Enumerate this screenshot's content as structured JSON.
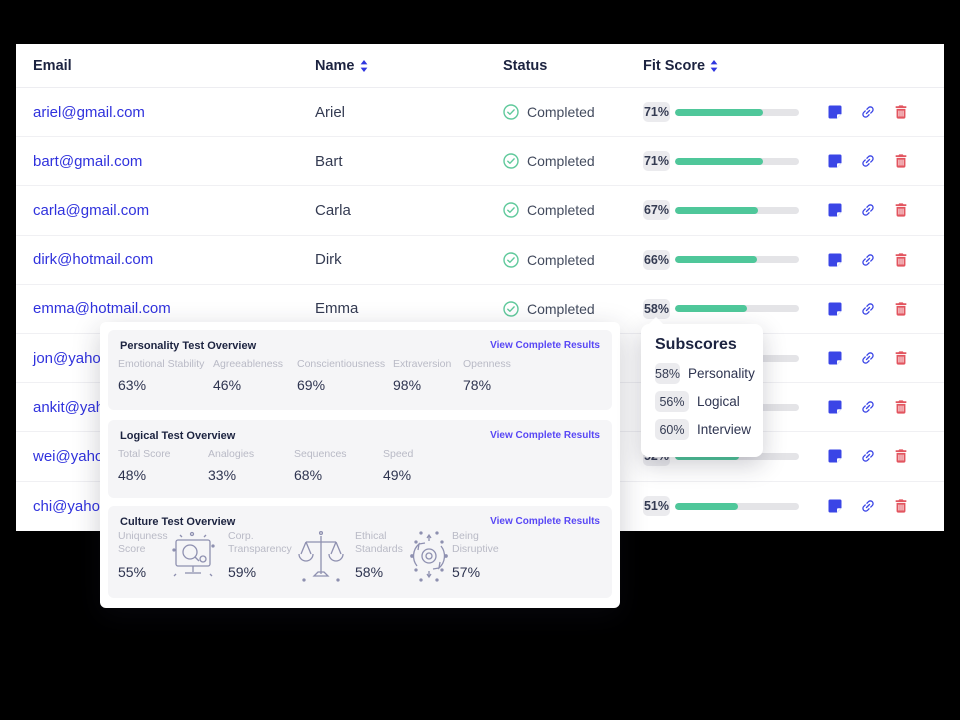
{
  "colors": {
    "page_background": "#000000",
    "accent_indigo": "#3a45e6",
    "link_blue": "#3032dd",
    "success_green": "#5fc99b",
    "progress_green": "#4fc79a",
    "danger_red": "#e2555f",
    "purple_link": "#5847f5"
  },
  "table": {
    "columns": [
      {
        "label": "Email",
        "sortable": false
      },
      {
        "label": "Name",
        "sortable": true
      },
      {
        "label": "Status",
        "sortable": false
      },
      {
        "label": "Fit Score",
        "sortable": true
      }
    ],
    "rows": [
      {
        "email": "ariel@gmail.com",
        "name": "Ariel",
        "status": "Completed",
        "fit": 71
      },
      {
        "email": "bart@gmail.com",
        "name": "Bart",
        "status": "Completed",
        "fit": 71
      },
      {
        "email": "carla@gmail.com",
        "name": "Carla",
        "status": "Completed",
        "fit": 67
      },
      {
        "email": "dirk@hotmail.com",
        "name": "Dirk",
        "status": "Completed",
        "fit": 66
      },
      {
        "email": "emma@hotmail.com",
        "name": "Emma",
        "status": "Completed",
        "fit": 58
      },
      {
        "email": "jon@yahoo.com",
        "name": "",
        "status": null,
        "fit": null
      },
      {
        "email": "ankit@yahoo.com",
        "name": "",
        "status": null,
        "fit": null
      },
      {
        "email": "wei@yahoo.com",
        "name": "",
        "status": null,
        "fit": 52
      },
      {
        "email": "chi@yahoo.com",
        "name": "",
        "status": null,
        "fit": 51
      }
    ],
    "row_actions": [
      {
        "name": "note",
        "icon": "note-icon"
      },
      {
        "name": "copy-link",
        "icon": "link-icon"
      },
      {
        "name": "delete",
        "icon": "trash-icon"
      }
    ]
  },
  "overview_popup": {
    "sections": [
      {
        "title": "Personality Test Overview",
        "link": "View Complete Results",
        "metrics": [
          {
            "label": "Emotional Stability",
            "value": "63%"
          },
          {
            "label": "Agreeableness",
            "value": "46%"
          },
          {
            "label": "Conscientiousness",
            "value": "69%"
          },
          {
            "label": "Extraversion",
            "value": "98%"
          },
          {
            "label": "Openness",
            "value": "78%"
          }
        ]
      },
      {
        "title": "Logical Test Overview",
        "link": "View Complete Results",
        "metrics": [
          {
            "label": "Total Score",
            "value": "48%"
          },
          {
            "label": "Analogies",
            "value": "33%"
          },
          {
            "label": "Sequences",
            "value": "68%"
          },
          {
            "label": "Speed",
            "value": "49%"
          }
        ]
      },
      {
        "title": "Culture Test Overview",
        "link": "View Complete Results",
        "metrics": [
          {
            "label": "Uniquness Score",
            "value": "55%"
          },
          {
            "label": "Corp. Transparency",
            "value": "59%",
            "icon": "monitor-search-icon"
          },
          {
            "label": "Ethical Standards",
            "value": "58%",
            "icon": "balance-scale-icon"
          },
          {
            "label": "Being Disruptive",
            "value": "57%",
            "icon": "disruptive-gear-icon"
          }
        ]
      }
    ]
  },
  "subscores_tooltip": {
    "title": "Subscores",
    "items": [
      {
        "value": "58%",
        "label": "Personality"
      },
      {
        "value": "56%",
        "label": "Logical"
      },
      {
        "value": "60%",
        "label": "Interview"
      }
    ]
  }
}
